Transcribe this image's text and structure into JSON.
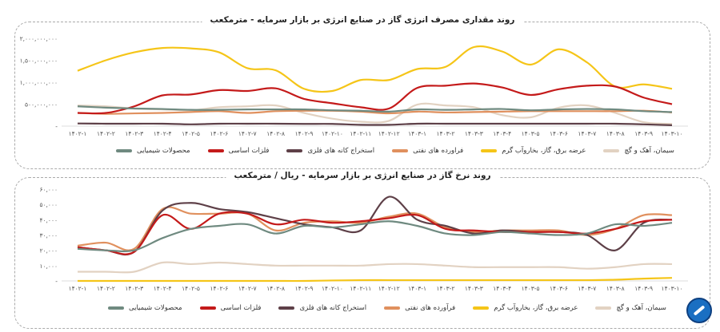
{
  "colors": {
    "chemical": "#6f8a80",
    "basic_metals": "#c41a1a",
    "mining": "#5e4048",
    "petroleum": "#e0905e",
    "power": "#f5c518",
    "cement": "#e2d2c2"
  },
  "logo_icon": "company-logo-circle",
  "chart_data": [
    {
      "type": "line",
      "title": "روند مقداری مصرف انرژی گاز در صنایع انرژی بر بازار سرمایه - مترمکعب",
      "categories": [
        "۱۴۰۲-۱",
        "۱۴۰۲-۲",
        "۱۴۰۲-۳",
        "۱۴۰۲-۴",
        "۱۴۰۲-۵",
        "۱۴۰۲-۶",
        "۱۴۰۲-۷",
        "۱۴۰۲-۸",
        "۱۴۰۲-۹",
        "۱۴۰۲-۱۰",
        "۱۴۰۲-۱۱",
        "۱۴۰۲-۱۲",
        "۱۴۰۳-۱",
        "۱۴۰۳-۲",
        "۱۴۰۳-۳",
        "۱۴۰۳-۴",
        "۱۴۰۳-۵",
        "۱۴۰۳-۶",
        "۱۴۰۳-۷",
        "۱۴۰۳-۸",
        "۱۴۰۳-۹",
        "۱۴۰۳-۱۰"
      ],
      "ylim": [
        0,
        2000000000
      ],
      "yticks": [
        0,
        500000000,
        1000000000,
        1500000000,
        2000000000
      ],
      "ytick_labels": [
        "-",
        "۵۰۰,۰۰۰,۰۰۰",
        "۱,۰۰۰,۰۰۰,۰۰۰",
        "۱,۵۰۰,۰۰۰,۰۰۰",
        "۲,۰۰۰,۰۰۰,۰۰۰"
      ],
      "legend": "bottom",
      "series": [
        {
          "key": "cement",
          "name": "سیمان، آهک و گچ",
          "values": [
            470,
            450,
            400,
            380,
            360,
            430,
            450,
            470,
            300,
            170,
            100,
            120,
            490,
            470,
            430,
            250,
            200,
            420,
            470,
            300,
            90,
            50
          ],
          "scale": 1000000
        },
        {
          "key": "power",
          "name": "عرضه برق، گاز، بخاروآب گرم",
          "values": [
            1260,
            1500,
            1680,
            1780,
            1770,
            1680,
            1320,
            1270,
            850,
            800,
            1050,
            1050,
            1300,
            1350,
            1800,
            1700,
            1400,
            1750,
            1450,
            900,
            950,
            850
          ],
          "scale": 1000000
        },
        {
          "key": "petroleum",
          "name": "فراورده های نفتی",
          "values": [
            300,
            280,
            290,
            300,
            320,
            340,
            300,
            340,
            350,
            350,
            330,
            290,
            330,
            310,
            320,
            330,
            340,
            340,
            340,
            340,
            350,
            310
          ],
          "scale": 1000000
        },
        {
          "key": "mining",
          "name": "استخراج کانه های فلزی",
          "values": [
            60,
            55,
            55,
            55,
            40,
            55,
            55,
            55,
            50,
            50,
            30,
            30,
            55,
            55,
            55,
            55,
            55,
            55,
            55,
            55,
            40,
            20
          ],
          "scale": 1000000
        },
        {
          "key": "basic_metals",
          "name": "فلزات اساسی",
          "values": [
            300,
            300,
            450,
            700,
            720,
            820,
            800,
            860,
            620,
            520,
            430,
            400,
            870,
            920,
            970,
            880,
            710,
            840,
            920,
            900,
            650,
            500
          ],
          "scale": 1000000
        },
        {
          "key": "chemical",
          "name": "محصولات شیمیایی",
          "values": [
            450,
            420,
            400,
            390,
            370,
            370,
            380,
            380,
            380,
            360,
            350,
            330,
            380,
            370,
            380,
            390,
            360,
            380,
            390,
            380,
            340,
            320
          ],
          "scale": 1000000
        }
      ]
    },
    {
      "type": "line",
      "title": "روند نرخ گاز در صنایع انرژی بر بازار سرمایه - ریال / مترمکعب",
      "categories": [
        "۱۴۰۲-۱",
        "۱۴۰۲-۲",
        "۱۴۰۲-۳",
        "۱۴۰۲-۴",
        "۱۴۰۲-۵",
        "۱۴۰۲-۶",
        "۱۴۰۲-۷",
        "۱۴۰۲-۸",
        "۱۴۰۲-۹",
        "۱۴۰۲-۱۰",
        "۱۴۰۲-۱۱",
        "۱۴۰۲-۱۲",
        "۱۴۰۳-۱",
        "۱۴۰۳-۲",
        "۱۴۰۳-۳",
        "۱۴۰۳-۴",
        "۱۴۰۳-۵",
        "۱۴۰۳-۶",
        "۱۴۰۳-۷",
        "۱۴۰۳-۸",
        "۱۴۰۳-۹",
        "۱۴۰۳-۱۰"
      ],
      "ylim": [
        0,
        60000
      ],
      "yticks": [
        0,
        10000,
        20000,
        30000,
        40000,
        50000,
        60000
      ],
      "ytick_labels": [
        "-",
        "۱۰,۰۰۰",
        "۲۰,۰۰۰",
        "۳۰,۰۰۰",
        "۴۰,۰۰۰",
        "۵۰,۰۰۰",
        "۶۰,۰۰۰"
      ],
      "legend": "bottom",
      "series": [
        {
          "key": "cement",
          "name": "سیمان، آهک و گچ",
          "values": [
            6,
            6,
            6,
            12,
            11,
            12,
            11,
            10,
            10,
            10,
            10,
            11,
            11,
            10,
            9,
            9,
            9,
            9,
            8,
            9,
            11,
            11
          ],
          "scale": 1000
        },
        {
          "key": "power",
          "name": "عرضه برق، گاز، بخاروآب گرم",
          "values": [
            0,
            0,
            0,
            0,
            0,
            0,
            0,
            0,
            0,
            0.3,
            0.5,
            0.5,
            0.5,
            0.5,
            0.5,
            0.5,
            0.5,
            0.5,
            0.5,
            0.8,
            1.5,
            2
          ],
          "scale": 1000
        },
        {
          "key": "petroleum",
          "name": "فرآورده های نفتی",
          "values": [
            23,
            25,
            21,
            47,
            44,
            44,
            44,
            33,
            38,
            39,
            38,
            42,
            44,
            35,
            32,
            33,
            33,
            33,
            30,
            34,
            43,
            43
          ],
          "scale": 1000
        },
        {
          "key": "mining",
          "name": "استخراج کانه های فلزی",
          "values": [
            22,
            20,
            19,
            46,
            51,
            47,
            45,
            41,
            37,
            35,
            33,
            55,
            40,
            36,
            31,
            33,
            32,
            32,
            30,
            20,
            38,
            40
          ],
          "scale": 1000
        },
        {
          "key": "basic_metals",
          "name": "فلزات اساسی",
          "values": [
            22,
            20,
            19,
            43,
            34,
            44,
            44,
            37,
            40,
            38,
            39,
            41,
            43,
            34,
            33,
            32,
            32,
            32,
            31,
            34,
            39,
            40
          ],
          "scale": 1000
        },
        {
          "key": "chemical",
          "name": "محصولات شیمیایی",
          "values": [
            21,
            20,
            20,
            28,
            34,
            36,
            37,
            31,
            36,
            35,
            37,
            39,
            36,
            31,
            30,
            32,
            31,
            30,
            31,
            37,
            36,
            38
          ],
          "scale": 1000
        }
      ]
    }
  ]
}
